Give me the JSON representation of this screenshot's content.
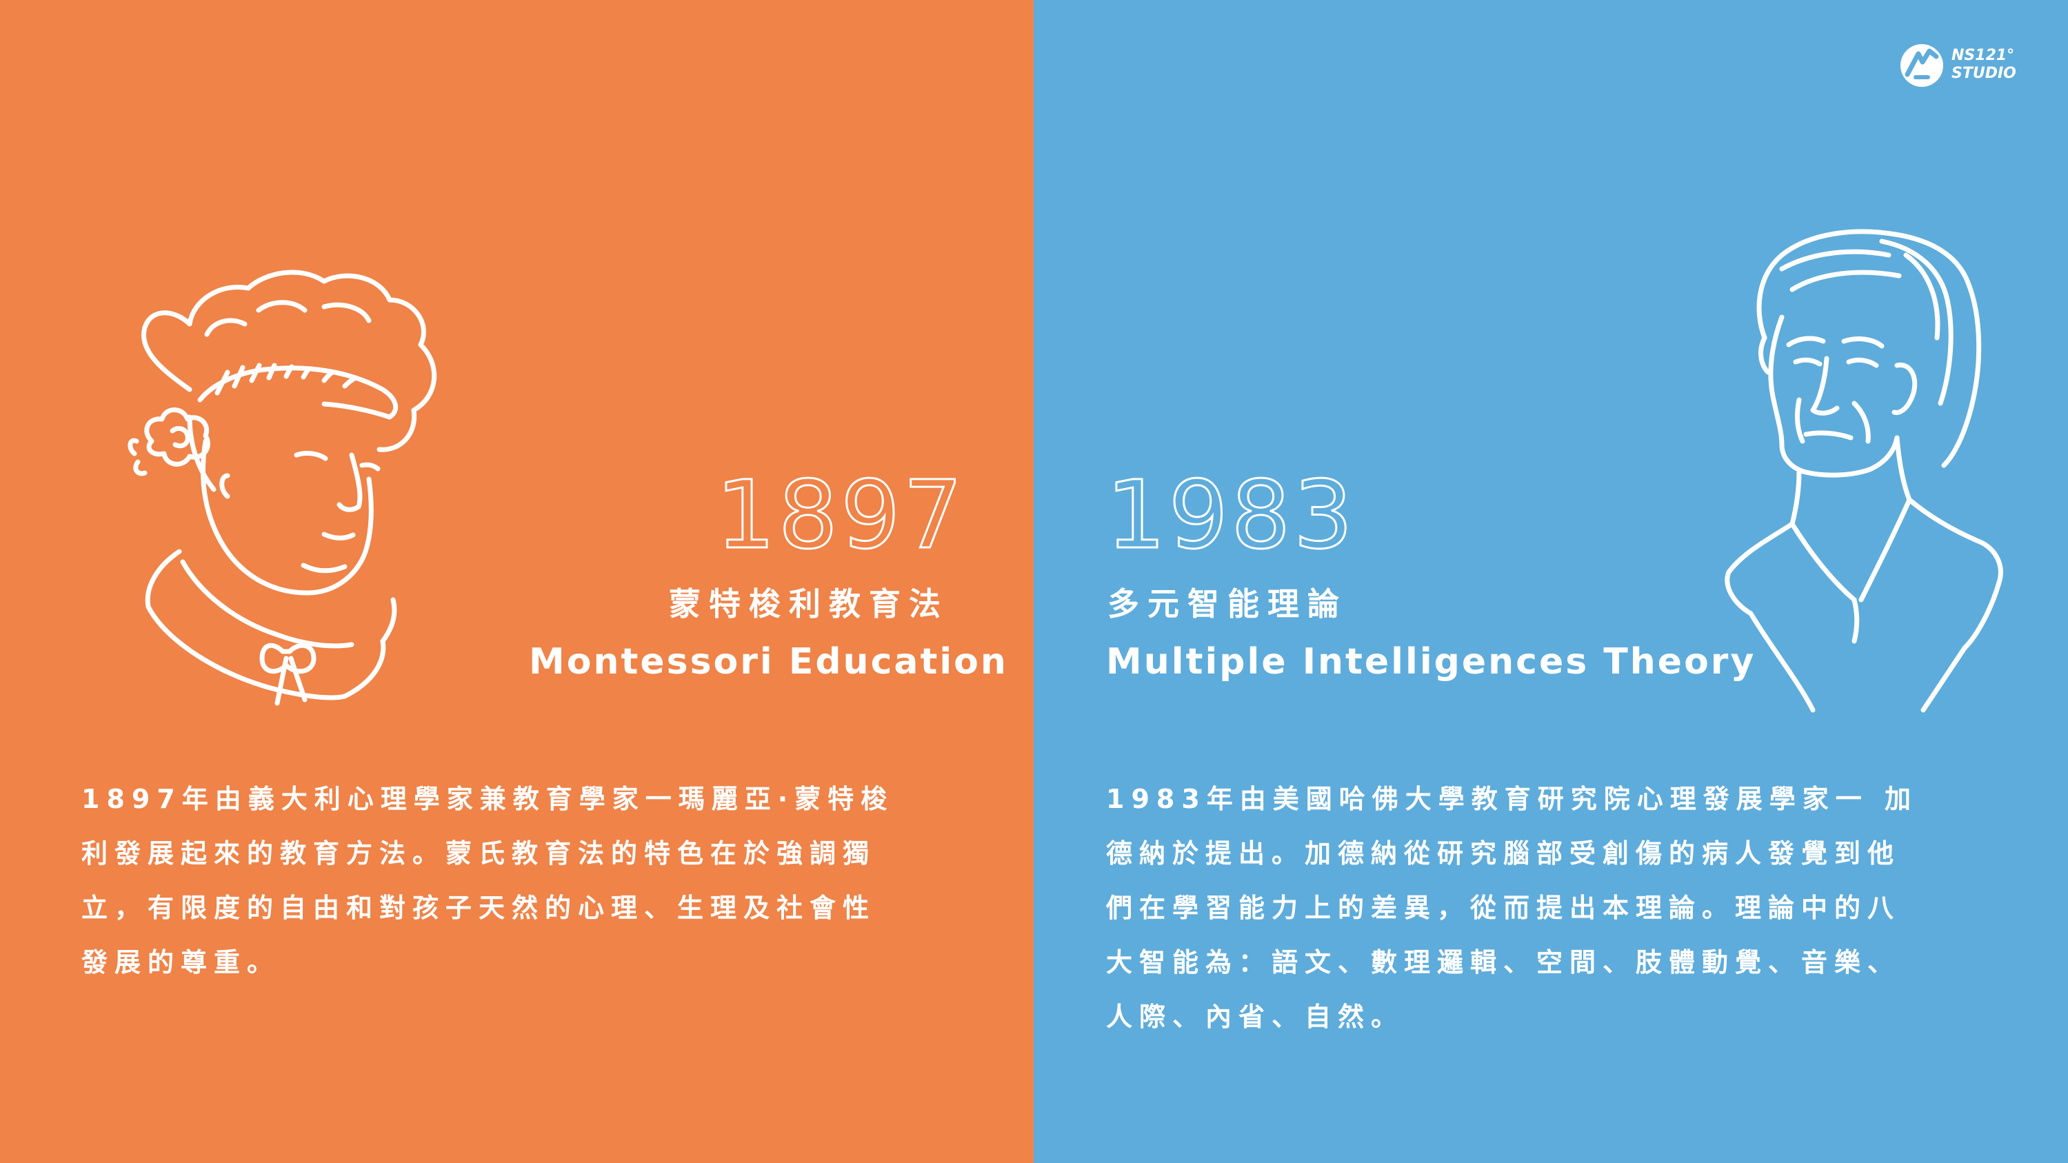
{
  "left": {
    "year": "1897",
    "title_zh": "蒙特梭利教育法",
    "title_en": "Montessori Education",
    "body_lines": [
      "1897年由義大利心理學家兼教育學家一瑪麗亞·蒙特梭",
      "利發展起來的教育方法。蒙氏教育法的特色在於強調獨",
      "立，有限度的自由和對孩子天然的心理、生理及社會性",
      "發展的尊重。"
    ],
    "background": "#EF8348"
  },
  "right": {
    "year": "1983",
    "title_zh": "多元智能理論",
    "title_en": "Multiple Intelligences Theory",
    "body_lines": [
      "1983年由美國哈佛大學教育研究院心理發展學家一 加",
      "德納於提出。加德納從研究腦部受創傷的病人發覺到他",
      "們在學習能力上的差異，從而提出本理論。理論中的八",
      "大智能為：語文、數理邏輯、空間、肢體動覺、音樂、",
      "人際、內省、自然。"
    ],
    "background": "#5EACDB"
  },
  "logo": {
    "line1": "NS121°",
    "line2": "STUDIO",
    "icon": "ns121-logo-icon"
  },
  "illustrations": {
    "left_icon": "montessori-portrait-icon",
    "right_icon": "gardner-portrait-icon"
  }
}
